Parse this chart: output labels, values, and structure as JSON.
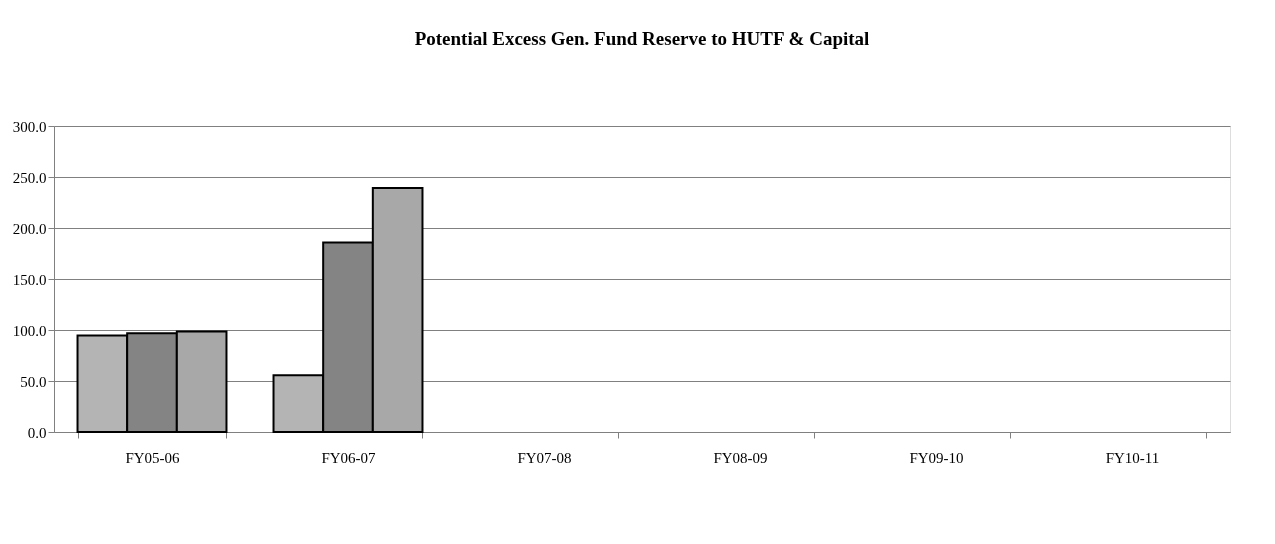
{
  "chart_data": {
    "type": "bar",
    "title": "Potential Excess Gen. Fund Reserve to HUTF & Capital",
    "categories": [
      "FY05-06",
      "FY06-07",
      "FY07-08",
      "FY08-09",
      "FY09-10",
      "FY10-11"
    ],
    "series": [
      {
        "color": "#b4b4b4",
        "values": [
          94.6,
          55.7,
          null,
          null,
          null,
          null
        ]
      },
      {
        "color": "#848484",
        "values": [
          96.7,
          185.7,
          null,
          null,
          null,
          null
        ]
      },
      {
        "color": "#a8a8a8",
        "values": [
          98.5,
          239.3,
          null,
          null,
          null,
          null
        ]
      }
    ],
    "ylim": [
      0,
      300
    ],
    "yticks": [
      {
        "value": 0,
        "label": "0.0"
      },
      {
        "value": 50,
        "label": "50.0"
      },
      {
        "value": 100,
        "label": "100.0"
      },
      {
        "value": 150,
        "label": "150.0"
      },
      {
        "value": 200,
        "label": "200.0"
      },
      {
        "value": 250,
        "label": "250.0"
      },
      {
        "value": 300,
        "label": "300.0"
      }
    ],
    "grid": "y",
    "legend": false
  }
}
